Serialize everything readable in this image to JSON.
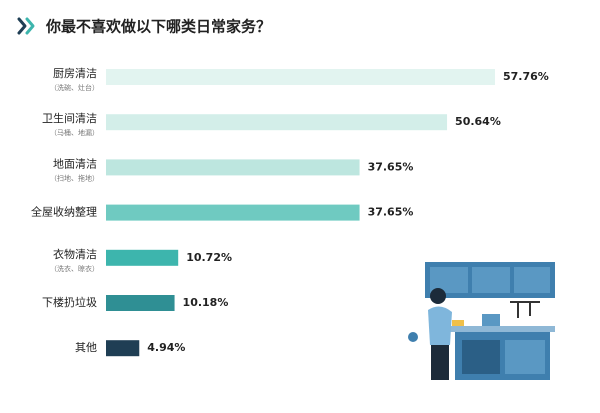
{
  "chart_data": {
    "type": "bar",
    "orientation": "horizontal",
    "title": "你最不喜欢做以下哪类日常家务？",
    "categories": [
      "厨房清洁",
      "卫生间清洁",
      "地面清洁",
      "全屋收纳整理",
      "衣物清洁",
      "下楼扔垃圾",
      "其他"
    ],
    "sublabels": [
      "（洗碗、灶台）",
      "（马桶、地漏）",
      "（扫地、拖地）",
      null,
      "（洗衣、晾衣）",
      null,
      null
    ],
    "values": [
      57.76,
      50.64,
      37.65,
      37.65,
      10.72,
      10.18,
      4.94
    ],
    "value_labels": [
      "57.76%",
      "50.64%",
      "37.65%",
      "37.65%",
      "10.72%",
      "10.18%",
      "4.94%"
    ],
    "colors": [
      "#e2f4f0",
      "#d3eee9",
      "#bde6df",
      "#6fcac1",
      "#3db5ad",
      "#2f8f94",
      "#1f3e54"
    ]
  }
}
